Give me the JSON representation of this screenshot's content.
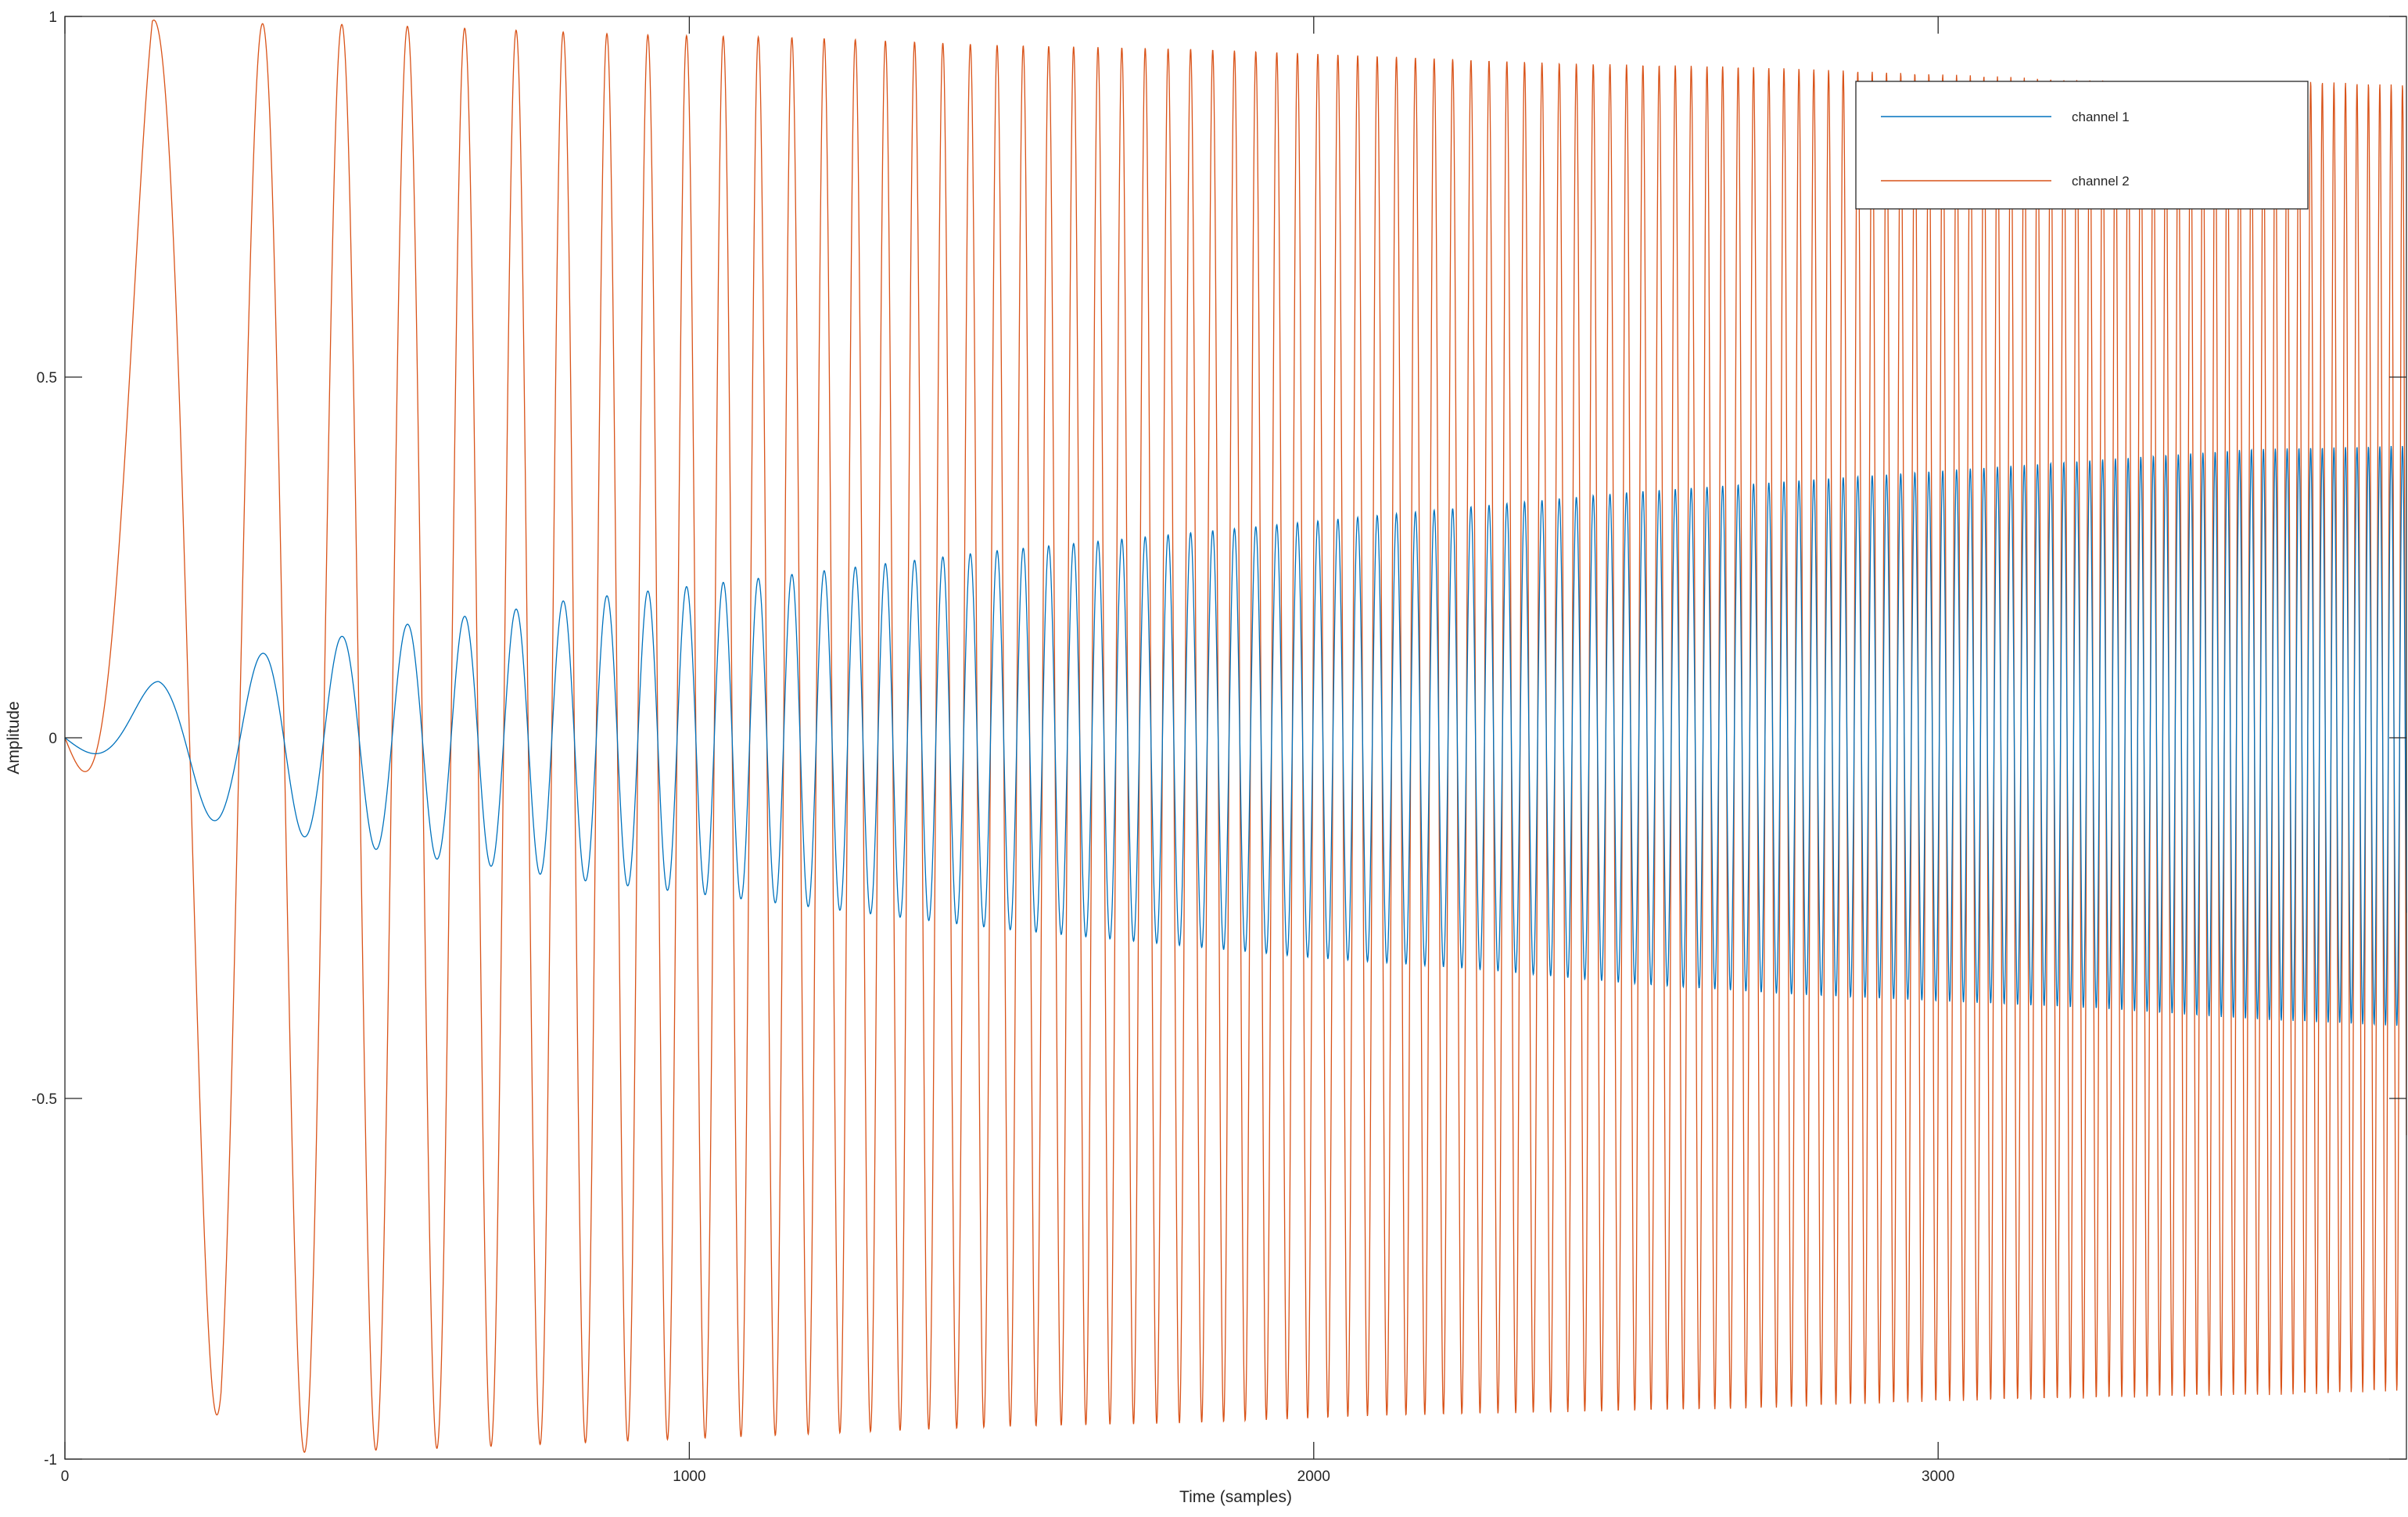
{
  "chart_data": {
    "type": "line",
    "xlabel": "Time (samples)",
    "ylabel": "Amplitude",
    "xlim": [
      0,
      3750
    ],
    "ylim": [
      -1,
      1
    ],
    "x_ticks": [
      0,
      1000,
      2000,
      3000
    ],
    "x_tick_labels": [
      "0",
      "1000",
      "2000",
      "3000"
    ],
    "y_ticks": [
      -1,
      -0.5,
      0,
      0.5,
      1
    ],
    "y_tick_labels": [
      "-1",
      "-0.5",
      "0",
      "0.5",
      "1"
    ],
    "grid": false,
    "box": true,
    "legend": {
      "location": "top-right"
    },
    "signal": {
      "description_type": "chirp",
      "length_samples": 3750,
      "initial_period_samples": 400,
      "final_period_samples": 18
    },
    "series": [
      {
        "name": "channel 1",
        "color": "#0072BD",
        "envelope": {
          "x": [
            0,
            150,
            330,
            440,
            530,
            610,
            700,
            800,
            950,
            1100,
            1300,
            1500,
            1750,
            2000,
            2250,
            2500,
            2750,
            3000,
            3250,
            3500,
            3750
          ],
          "upper": [
            0.0,
            0.08,
            0.12,
            0.14,
            0.155,
            0.165,
            0.175,
            0.19,
            0.205,
            0.22,
            0.24,
            0.26,
            0.28,
            0.3,
            0.32,
            0.34,
            0.355,
            0.37,
            0.385,
            0.4,
            0.405
          ],
          "lower": [
            0.0,
            -0.1,
            -0.13,
            -0.145,
            -0.16,
            -0.17,
            -0.18,
            -0.195,
            -0.21,
            -0.225,
            -0.245,
            -0.265,
            -0.285,
            -0.305,
            -0.32,
            -0.34,
            -0.355,
            -0.365,
            -0.375,
            -0.39,
            -0.4
          ]
        }
      },
      {
        "name": "channel 2",
        "color": "#D95319",
        "envelope": {
          "x": [
            0,
            140,
            250,
            400,
            600,
            900,
            1200,
            1500,
            1800,
            2100,
            2400,
            2700,
            3000,
            3300,
            3600,
            3750
          ],
          "upper": [
            0.0,
            0.995,
            0.99,
            0.99,
            0.985,
            0.975,
            0.97,
            0.96,
            0.955,
            0.945,
            0.935,
            0.93,
            0.92,
            0.91,
            0.91,
            0.905
          ],
          "lower": [
            0.0,
            -0.3,
            -0.995,
            -0.99,
            -0.985,
            -0.975,
            -0.965,
            -0.955,
            -0.95,
            -0.94,
            -0.935,
            -0.93,
            -0.92,
            -0.915,
            -0.91,
            -0.905
          ]
        }
      }
    ]
  }
}
